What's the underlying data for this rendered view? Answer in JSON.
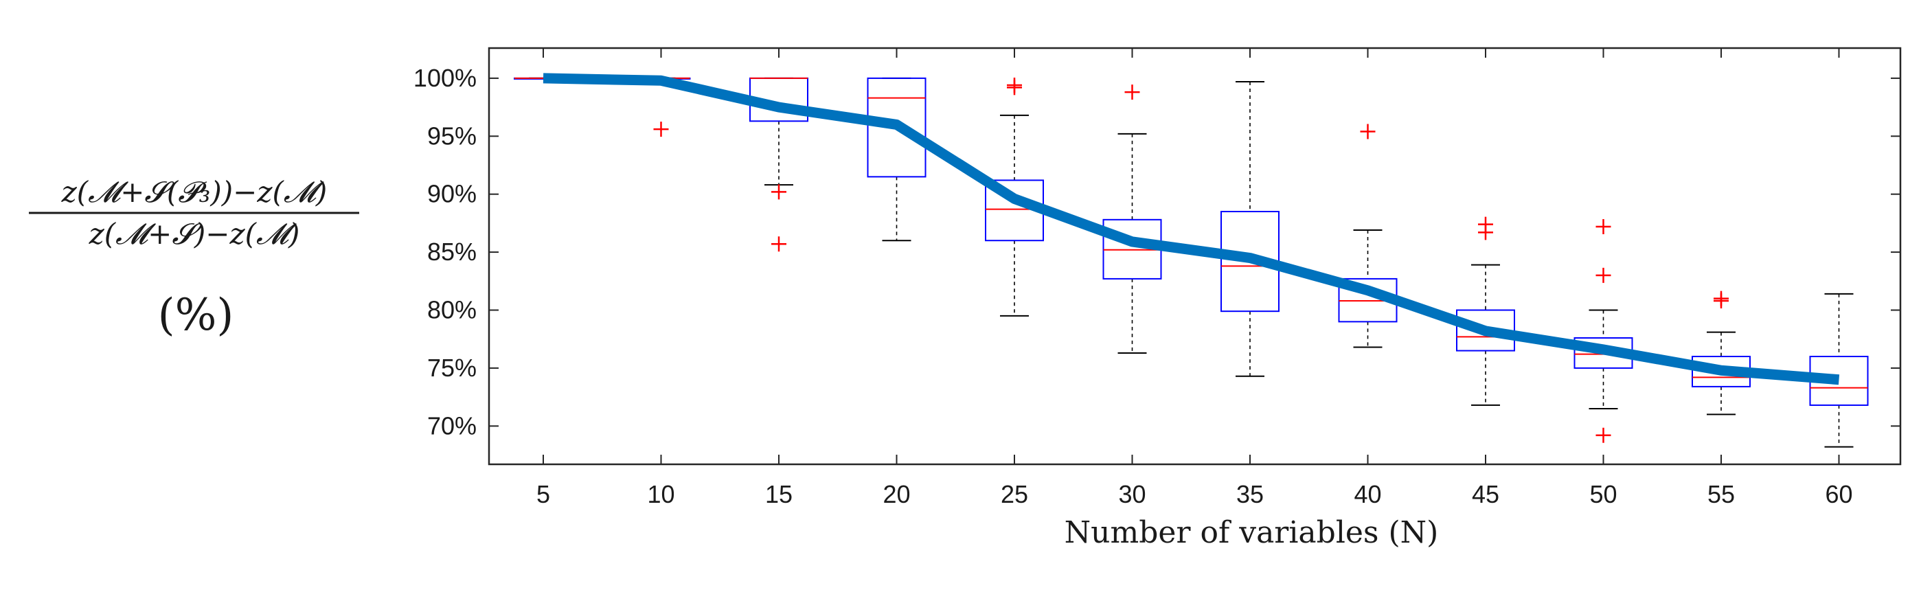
{
  "chart_data": {
    "type": "box",
    "xlabel": "Number of variables (N)",
    "ylabel_numerator": "z(𝓜+𝓢(𝓟₃))−z(𝓜)",
    "ylabel_denominator": "z(𝓜+𝓢)−z(𝓜)",
    "ylabel_unit": "(%)",
    "x": [
      5,
      10,
      15,
      20,
      25,
      30,
      35,
      40,
      45,
      50,
      55,
      60
    ],
    "xtick_labels": [
      "5",
      "10",
      "15",
      "20",
      "25",
      "30",
      "35",
      "40",
      "45",
      "50",
      "55",
      "60"
    ],
    "yticks": [
      70,
      75,
      80,
      85,
      90,
      95,
      100
    ],
    "ytick_labels": [
      "70%",
      "75%",
      "80%",
      "85%",
      "90%",
      "95%",
      "100%"
    ],
    "ylim": [
      66.7,
      102.6
    ],
    "grid": false,
    "boxes": [
      {
        "x": 5,
        "whisker_low": 100.0,
        "q1": 100.0,
        "median": 100.0,
        "q3": 100.0,
        "whisker_high": 100.0,
        "outliers": []
      },
      {
        "x": 10,
        "whisker_low": 100.0,
        "q1": 100.0,
        "median": 100.0,
        "q3": 100.0,
        "whisker_high": 100.0,
        "outliers": [
          95.6
        ]
      },
      {
        "x": 15,
        "whisker_low": 90.8,
        "q1": 96.3,
        "median": 100.0,
        "q3": 100.0,
        "whisker_high": 100.0,
        "outliers": [
          90.2,
          85.7
        ]
      },
      {
        "x": 20,
        "whisker_low": 86.0,
        "q1": 91.5,
        "median": 98.3,
        "q3": 100.0,
        "whisker_high": 100.0,
        "outliers": []
      },
      {
        "x": 25,
        "whisker_low": 79.5,
        "q1": 86.0,
        "median": 88.7,
        "q3": 91.2,
        "whisker_high": 96.8,
        "outliers": [
          99.4,
          99.2
        ]
      },
      {
        "x": 30,
        "whisker_low": 76.3,
        "q1": 82.7,
        "median": 85.2,
        "q3": 87.8,
        "whisker_high": 95.2,
        "outliers": [
          98.8
        ]
      },
      {
        "x": 35,
        "whisker_low": 74.3,
        "q1": 79.9,
        "median": 83.8,
        "q3": 88.5,
        "whisker_high": 99.7,
        "outliers": []
      },
      {
        "x": 40,
        "whisker_low": 76.8,
        "q1": 79.0,
        "median": 80.8,
        "q3": 82.7,
        "whisker_high": 86.9,
        "outliers": [
          95.4
        ]
      },
      {
        "x": 45,
        "whisker_low": 71.8,
        "q1": 76.5,
        "median": 77.7,
        "q3": 80.0,
        "whisker_high": 83.9,
        "outliers": [
          87.4,
          86.7
        ]
      },
      {
        "x": 50,
        "whisker_low": 71.5,
        "q1": 75.0,
        "median": 76.2,
        "q3": 77.6,
        "whisker_high": 80.0,
        "outliers": [
          87.2,
          83.0,
          69.2
        ]
      },
      {
        "x": 55,
        "whisker_low": 71.0,
        "q1": 73.4,
        "median": 74.2,
        "q3": 76.0,
        "whisker_high": 78.1,
        "outliers": [
          81.0,
          80.8
        ]
      },
      {
        "x": 60,
        "whisker_low": 68.2,
        "q1": 71.8,
        "median": 73.3,
        "q3": 76.0,
        "whisker_high": 81.4,
        "outliers": []
      }
    ],
    "mean_line": [
      100.0,
      99.8,
      97.5,
      96.0,
      89.6,
      85.9,
      84.5,
      81.7,
      78.2,
      76.6,
      74.8,
      74.0
    ],
    "colors": {
      "box": "#0000ff",
      "median": "#ff0000",
      "whisker": "#000000",
      "outlier": "#ff0000",
      "mean_line": "#0072bd",
      "axes": "#262626"
    }
  }
}
